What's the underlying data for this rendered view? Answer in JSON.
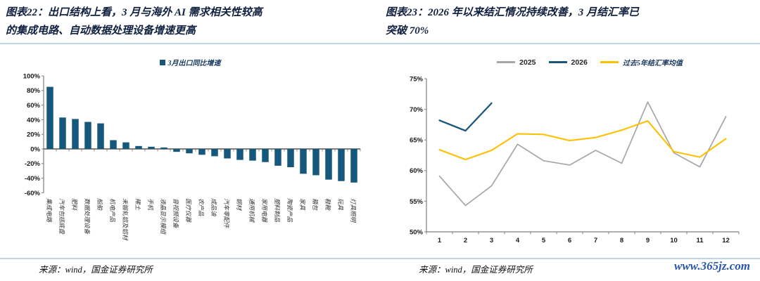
{
  "theme": {
    "divider_color": "#BCD6E8",
    "title_color": "#10213F",
    "axis_color": "#808080",
    "zero_axis_color": "#595959",
    "text_color": "#1A1A1A",
    "watermark_color": "#2B57A7"
  },
  "watermark": "www.365jz.com",
  "left_panel": {
    "figure_title_lines": [
      "图表22：出口结构上看，3 月与海外 AI 需求相关性较高",
      "的集成电路、自动数据处理设备增速更高"
    ],
    "source": "来源：wind，国金证券研究所"
  },
  "right_panel": {
    "figure_title_lines": [
      "图表23：2026 年以来结汇情况持续改善，3 月结汇率已",
      "突破 70%"
    ],
    "source": "来源：wind，国金证券研究所"
  },
  "chart_data": [
    {
      "type": "bar",
      "title": "3月出口同比增速",
      "legend": [
        "3月出口同比增速"
      ],
      "bar_color": "#16587B",
      "ylim": [
        -60,
        100
      ],
      "ytick_step": 20,
      "ytick_labels": [
        "100%",
        "80%",
        "60%",
        "40%",
        "20%",
        "0%",
        "-20%",
        "-40%",
        "-60%"
      ],
      "categories": [
        "集成电路",
        "汽车包括底盘",
        "肥料",
        "数据处理设备",
        "船舶",
        "机电产品",
        "未锻轧铝及铝材",
        "稀土",
        "手机",
        "液晶显示模组",
        "音视频设备",
        "医疗仪器",
        "农产品",
        "成品油",
        "汽车零配件",
        "钢材",
        "通用机械",
        "家用电器",
        "塑料制品",
        "陶瓷产品",
        "家具",
        "箱包",
        "鞋靴",
        "玩具",
        "灯具照明"
      ],
      "values": [
        85,
        43,
        41,
        37,
        35,
        12,
        9,
        4,
        3,
        2,
        -4,
        -6,
        -8,
        -10,
        -13,
        -15,
        -16,
        -18,
        -23,
        -25,
        -34,
        -36,
        -42,
        -44,
        -46
      ]
    },
    {
      "type": "line",
      "ylim": [
        50,
        75
      ],
      "ytick_step": 5,
      "ytick_labels": [
        "75%",
        "70%",
        "65%",
        "60%",
        "55%",
        "50%"
      ],
      "x": [
        1,
        2,
        3,
        4,
        5,
        6,
        7,
        8,
        9,
        10,
        11,
        12
      ],
      "legend_position": "top",
      "series": [
        {
          "name": "2025",
          "color": "#A6A6A6",
          "values": [
            59.1,
            54.3,
            57.5,
            64.3,
            61.6,
            60.9,
            63.3,
            61.2,
            71.2,
            62.9,
            60.6,
            68.8
          ]
        },
        {
          "name": "2026",
          "color": "#1B567C",
          "values": [
            68.2,
            66.5,
            71.0
          ]
        },
        {
          "name": "过去5年结汇率均值",
          "color": "#FFC000",
          "values": [
            63.4,
            61.8,
            63.3,
            66.0,
            65.9,
            64.9,
            65.4,
            66.6,
            68.1,
            63.1,
            62.2,
            65.2
          ]
        }
      ]
    }
  ]
}
